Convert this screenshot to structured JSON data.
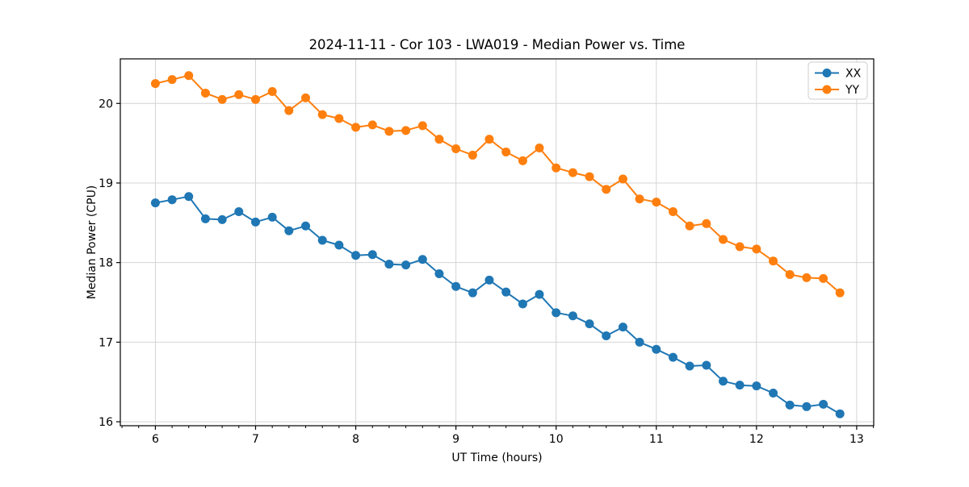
{
  "chart_data": {
    "type": "line",
    "title": "2024-11-11 - Cor 103 - LWA019 - Median Power vs. Time",
    "xlabel": "UT Time (hours)",
    "ylabel": "Median Power (CPU)",
    "xlim": [
      5.65,
      13.17
    ],
    "ylim": [
      15.95,
      20.56
    ],
    "xticks": [
      6,
      7,
      8,
      9,
      10,
      11,
      12,
      13
    ],
    "yticks": [
      16,
      17,
      18,
      19,
      20
    ],
    "x_minor_step_hours": 0.1667,
    "grid": true,
    "legend_position": "upper right",
    "colors": {
      "XX": "#1f77b4",
      "YY": "#ff7f0e",
      "grid": "#d4d4d4",
      "spine": "#000000"
    },
    "x": [
      6.0,
      6.167,
      6.333,
      6.5,
      6.667,
      6.833,
      7.0,
      7.167,
      7.333,
      7.5,
      7.667,
      7.833,
      8.0,
      8.167,
      8.333,
      8.5,
      8.667,
      8.833,
      9.0,
      9.167,
      9.333,
      9.5,
      9.667,
      9.833,
      10.0,
      10.167,
      10.333,
      10.5,
      10.667,
      10.833,
      11.0,
      11.167,
      11.333,
      11.5,
      11.667,
      11.833,
      12.0,
      12.167,
      12.333,
      12.5,
      12.667,
      12.833
    ],
    "series": [
      {
        "name": "XX",
        "color": "#1f77b4",
        "values": [
          18.75,
          18.79,
          18.83,
          18.55,
          18.54,
          18.64,
          18.51,
          18.57,
          18.4,
          18.46,
          18.28,
          18.22,
          18.09,
          18.1,
          17.98,
          17.97,
          18.04,
          17.86,
          17.7,
          17.62,
          17.78,
          17.63,
          17.48,
          17.6,
          17.37,
          17.33,
          17.23,
          17.08,
          17.19,
          17.0,
          16.91,
          16.81,
          16.7,
          16.71,
          16.51,
          16.46,
          16.45,
          16.36,
          16.21,
          16.19,
          16.22,
          16.1
        ]
      },
      {
        "name": "YY",
        "color": "#ff7f0e",
        "values": [
          20.25,
          20.3,
          20.35,
          20.13,
          20.05,
          20.11,
          20.05,
          20.15,
          19.91,
          20.07,
          19.86,
          19.81,
          19.7,
          19.73,
          19.65,
          19.66,
          19.72,
          19.55,
          19.43,
          19.35,
          19.55,
          19.39,
          19.28,
          19.44,
          19.19,
          19.13,
          19.08,
          18.92,
          19.05,
          18.8,
          18.76,
          18.64,
          18.46,
          18.49,
          18.29,
          18.2,
          18.17,
          18.02,
          17.85,
          17.81,
          17.8,
          17.62
        ]
      }
    ]
  }
}
